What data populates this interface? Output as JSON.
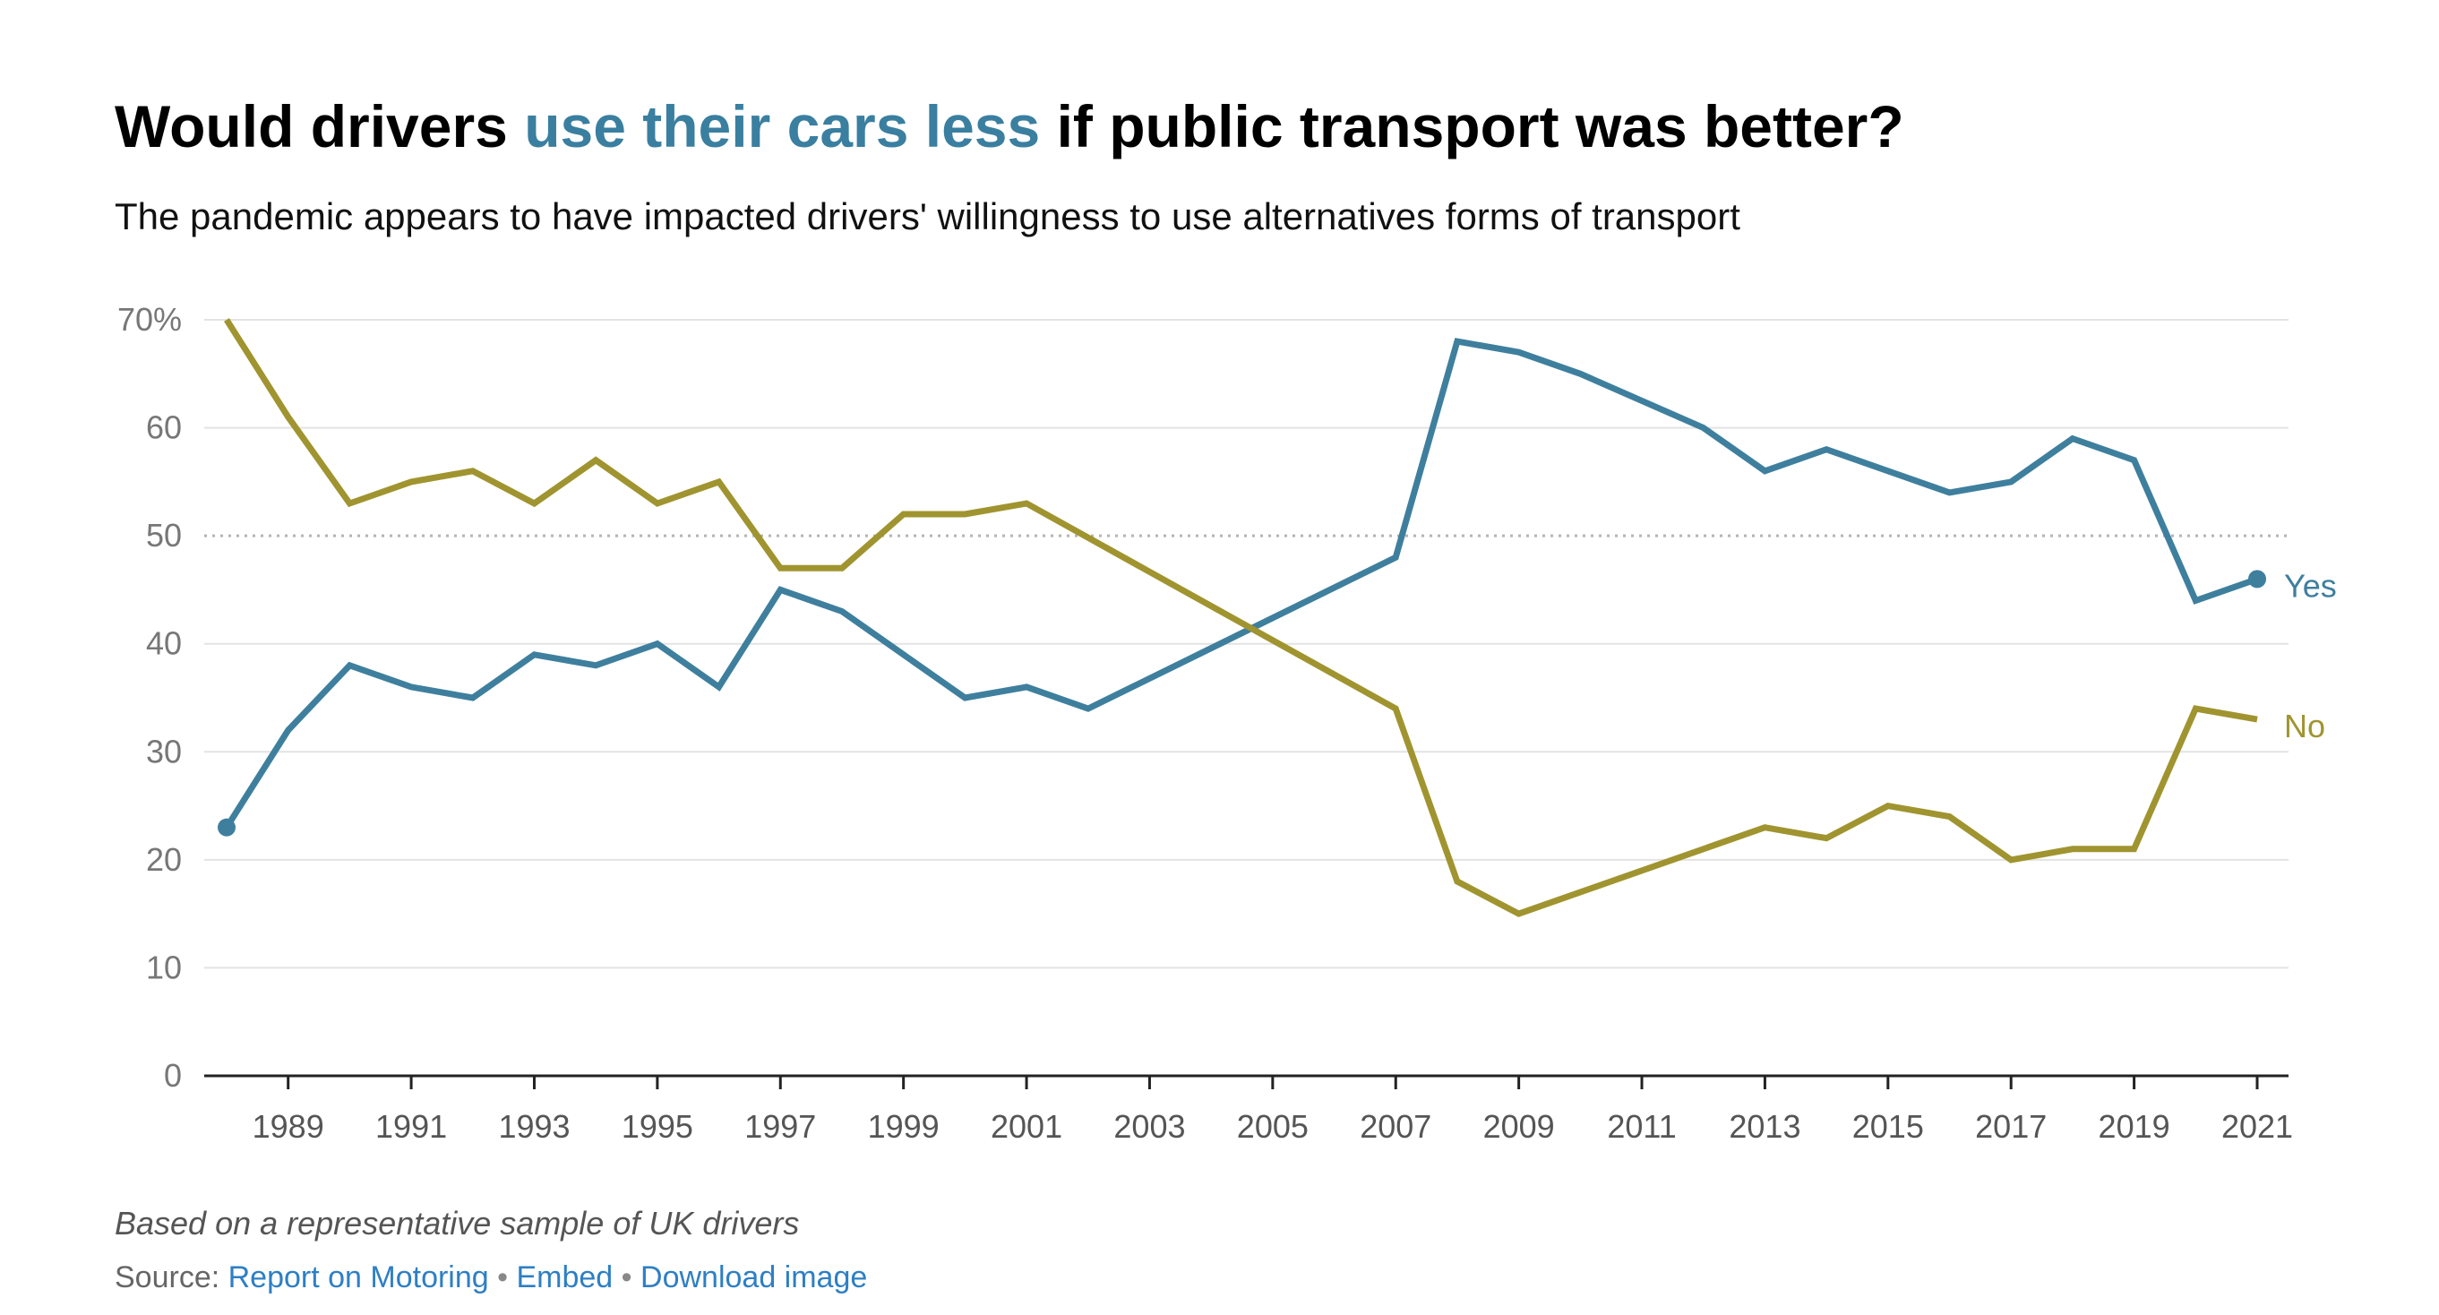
{
  "title": {
    "before": "Would drivers ",
    "highlight": "use their cars less",
    "after": " if public transport was better?"
  },
  "subtitle": "The pandemic appears to have impacted drivers' willingness to use alternatives forms of transport",
  "footer": {
    "note": "Based on a representative sample of UK drivers",
    "source_prefix": "Source: ",
    "source_link": "Report on Motoring",
    "separator": "•",
    "embed_link": "Embed",
    "download_link": "Download image"
  },
  "colors": {
    "yes": "#3f7f9e",
    "no": "#a09430",
    "highlight": "#3a7fa0",
    "grid": "#e3e3e3",
    "reference": "#b4b4b4",
    "axis": "#222222",
    "link": "#2e7fc4"
  },
  "chart_data": {
    "type": "line",
    "title": "Would drivers use their cars less if public transport was better?",
    "subtitle": "The pandemic appears to have impacted drivers' willingness to use alternatives forms of transport",
    "xlabel": "",
    "ylabel": "",
    "x": [
      1988,
      1989,
      1990,
      1991,
      1992,
      1993,
      1994,
      1995,
      1996,
      1997,
      1998,
      1999,
      2000,
      2001,
      2002,
      2003,
      2004,
      2005,
      2006,
      2007,
      2008,
      2009,
      2010,
      2011,
      2012,
      2013,
      2014,
      2015,
      2016,
      2017,
      2018,
      2019,
      2020,
      2021
    ],
    "series": [
      {
        "name": "Yes",
        "color": "#3f7f9e",
        "values": [
          23,
          32,
          38,
          36,
          35,
          39,
          38,
          40,
          36,
          45,
          43,
          39,
          35,
          36,
          34,
          null,
          null,
          null,
          null,
          48,
          68,
          67,
          65,
          62.5,
          60,
          56,
          58,
          56,
          54,
          55,
          59,
          57,
          44,
          46
        ]
      },
      {
        "name": "No",
        "color": "#a09430",
        "values": [
          70,
          61,
          53,
          55,
          56,
          53,
          57,
          53,
          55,
          47,
          47,
          52,
          52,
          53,
          null,
          null,
          null,
          null,
          null,
          34,
          18,
          15,
          null,
          null,
          null,
          23,
          22,
          25,
          24,
          20,
          21,
          21,
          34,
          33
        ]
      }
    ],
    "x_tick_labels": [
      "1989",
      "1991",
      "1993",
      "1995",
      "1997",
      "1999",
      "2001",
      "2003",
      "2005",
      "2007",
      "2009",
      "2011",
      "2013",
      "2015",
      "2017",
      "2019",
      "2021"
    ],
    "y_tick_labels": [
      "0",
      "10",
      "20",
      "30",
      "40",
      "50",
      "60",
      "70%"
    ],
    "y_ticks": [
      0,
      10,
      20,
      30,
      40,
      50,
      60,
      70
    ],
    "xlim": [
      1988,
      2021
    ],
    "ylim": [
      0,
      70
    ],
    "reference_line": 50,
    "grid": true,
    "legend": "inline at line ends"
  }
}
